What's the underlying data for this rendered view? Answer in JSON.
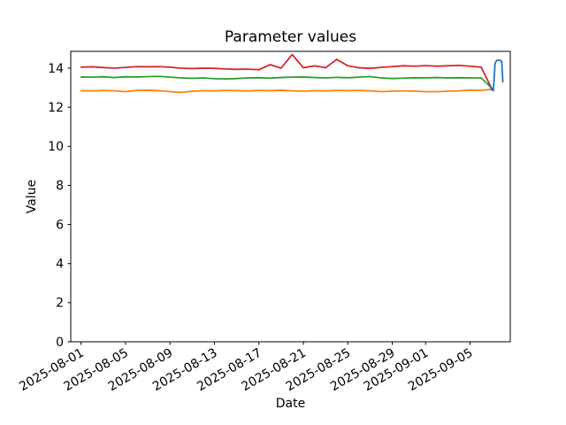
{
  "figure": {
    "title": "Parameter values",
    "x_axis_label": "Date",
    "y_axis_label": "Value",
    "background_color": "#ffffff",
    "frame_color": "#000000"
  },
  "chart_data": {
    "type": "line",
    "title": "Parameter values",
    "xlabel": "Date",
    "ylabel": "Value",
    "grid": false,
    "legend": "none",
    "x_unit": "days since 2025-08-01",
    "xlim": [
      -0.93,
      38.62
    ],
    "ylim": [
      0,
      14.86
    ],
    "x_ticks": [
      {
        "day": 0,
        "label": "2025-08-01"
      },
      {
        "day": 4,
        "label": "2025-08-05"
      },
      {
        "day": 8,
        "label": "2025-08-09"
      },
      {
        "day": 12,
        "label": "2025-08-13"
      },
      {
        "day": 16,
        "label": "2025-08-17"
      },
      {
        "day": 20,
        "label": "2025-08-21"
      },
      {
        "day": 24,
        "label": "2025-08-25"
      },
      {
        "day": 28,
        "label": "2025-08-29"
      },
      {
        "day": 31,
        "label": "2025-09-01"
      },
      {
        "day": 35,
        "label": "2025-09-05"
      }
    ],
    "x_tick_rotation_deg": -30,
    "y_ticks": [
      0,
      2,
      4,
      6,
      8,
      10,
      12,
      14
    ],
    "series": [
      {
        "name": "orange",
        "color": "#ff7f0e",
        "x": [
          0,
          1,
          2,
          3,
          4,
          5,
          6,
          7,
          8,
          9,
          10,
          11,
          12,
          13,
          14,
          15,
          16,
          17,
          18,
          19,
          20,
          21,
          22,
          23,
          24,
          25,
          26,
          27,
          28,
          29,
          30,
          31,
          32,
          33,
          34,
          35,
          36,
          37
        ],
        "values": [
          12.85,
          12.84,
          12.86,
          12.84,
          12.8,
          12.86,
          12.87,
          12.85,
          12.8,
          12.76,
          12.82,
          12.85,
          12.84,
          12.86,
          12.85,
          12.84,
          12.86,
          12.85,
          12.87,
          12.84,
          12.82,
          12.85,
          12.84,
          12.86,
          12.85,
          12.86,
          12.84,
          12.8,
          12.82,
          12.84,
          12.82,
          12.8,
          12.8,
          12.82,
          12.84,
          12.88,
          12.86,
          12.92
        ]
      },
      {
        "name": "green",
        "color": "#2ca02c",
        "x": [
          0,
          1,
          2,
          3,
          4,
          5,
          6,
          7,
          8,
          9,
          10,
          11,
          12,
          13,
          14,
          15,
          16,
          17,
          18,
          19,
          20,
          21,
          22,
          23,
          24,
          25,
          26,
          27,
          28,
          29,
          30,
          31,
          32,
          33,
          34,
          35,
          36,
          37
        ],
        "values": [
          13.55,
          13.54,
          13.56,
          13.52,
          13.56,
          13.55,
          13.57,
          13.58,
          13.54,
          13.5,
          13.48,
          13.5,
          13.46,
          13.45,
          13.47,
          13.5,
          13.51,
          13.49,
          13.52,
          13.54,
          13.55,
          13.52,
          13.5,
          13.53,
          13.51,
          13.54,
          13.57,
          13.5,
          13.47,
          13.49,
          13.51,
          13.5,
          13.52,
          13.5,
          13.51,
          13.5,
          13.5,
          12.95
        ]
      },
      {
        "name": "red",
        "color": "#d62728",
        "x": [
          0,
          1,
          2,
          3,
          4,
          5,
          6,
          7,
          8,
          9,
          10,
          11,
          12,
          13,
          14,
          15,
          16,
          17,
          18,
          19,
          20,
          21,
          22,
          23,
          24,
          25,
          26,
          27,
          28,
          29,
          30,
          31,
          32,
          33,
          34,
          35,
          36,
          37
        ],
        "values": [
          14.05,
          14.07,
          14.03,
          14.0,
          14.04,
          14.08,
          14.07,
          14.08,
          14.05,
          14.0,
          13.98,
          14.0,
          13.99,
          13.96,
          13.94,
          13.95,
          13.92,
          14.18,
          14.0,
          14.7,
          14.02,
          14.12,
          14.02,
          14.45,
          14.12,
          14.02,
          13.99,
          14.04,
          14.08,
          14.12,
          14.1,
          14.13,
          14.1,
          14.12,
          14.14,
          14.1,
          14.05,
          12.9
        ]
      },
      {
        "name": "blue",
        "color": "#1f77b4",
        "x": [
          36.7,
          36.95,
          37.1,
          37.25,
          37.4,
          37.7,
          37.85,
          37.95
        ],
        "values": [
          13.2,
          12.9,
          12.85,
          14.25,
          14.4,
          14.4,
          14.35,
          13.3
        ]
      }
    ]
  }
}
